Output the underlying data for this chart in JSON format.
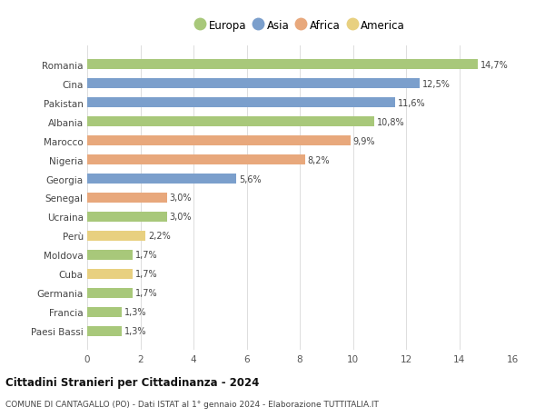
{
  "countries": [
    "Paesi Bassi",
    "Francia",
    "Germania",
    "Cuba",
    "Moldova",
    "Perù",
    "Ucraina",
    "Senegal",
    "Georgia",
    "Nigeria",
    "Marocco",
    "Albania",
    "Pakistan",
    "Cina",
    "Romania"
  ],
  "values": [
    1.3,
    1.3,
    1.7,
    1.7,
    1.7,
    2.2,
    3.0,
    3.0,
    5.6,
    8.2,
    9.9,
    10.8,
    11.6,
    12.5,
    14.7
  ],
  "continents": [
    "Europa",
    "Europa",
    "Europa",
    "America",
    "Europa",
    "America",
    "Europa",
    "Africa",
    "Asia",
    "Africa",
    "Africa",
    "Europa",
    "Asia",
    "Asia",
    "Europa"
  ],
  "continent_colors": {
    "Europa": "#a8c87a",
    "Asia": "#7b9fcc",
    "Africa": "#e8a87c",
    "America": "#e8d080"
  },
  "legend_order": [
    "Europa",
    "Asia",
    "Africa",
    "America"
  ],
  "title": "Cittadini Stranieri per Cittadinanza - 2024",
  "subtitle": "COMUNE DI CANTAGALLO (PO) - Dati ISTAT al 1° gennaio 2024 - Elaborazione TUTTITALIA.IT",
  "xlim": [
    0,
    16
  ],
  "xticks": [
    0,
    2,
    4,
    6,
    8,
    10,
    12,
    14,
    16
  ],
  "background_color": "#ffffff",
  "grid_color": "#dddddd",
  "bar_height": 0.55
}
